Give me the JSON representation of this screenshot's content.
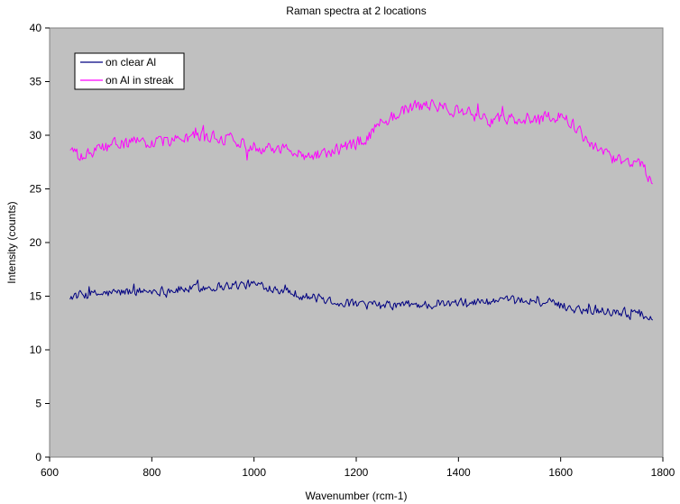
{
  "chart_data": {
    "type": "line",
    "title": "Raman spectra at 2 locations",
    "xlabel": "Wavenumber (rcm-1)",
    "ylabel": "Intensity (counts)",
    "xlim": [
      600,
      1800
    ],
    "ylim": [
      0,
      40
    ],
    "x_ticks": [
      600,
      800,
      1000,
      1200,
      1400,
      1600,
      1800
    ],
    "y_ticks": [
      0,
      5,
      10,
      15,
      20,
      25,
      30,
      35,
      40
    ],
    "grid": false,
    "plot_background": "#C0C0C0",
    "legend_position": "top-left",
    "series": [
      {
        "name": "on clear Al",
        "color": "#000080",
        "x_range": [
          640,
          1780
        ],
        "points": [
          [
            640,
            15.0
          ],
          [
            700,
            15.2
          ],
          [
            750,
            15.4
          ],
          [
            800,
            15.5
          ],
          [
            850,
            15.6
          ],
          [
            900,
            15.8
          ],
          [
            950,
            16.0
          ],
          [
            1000,
            16.1
          ],
          [
            1050,
            15.7
          ],
          [
            1100,
            15.0
          ],
          [
            1150,
            14.6
          ],
          [
            1200,
            14.2
          ],
          [
            1250,
            14.1
          ],
          [
            1300,
            14.2
          ],
          [
            1350,
            14.2
          ],
          [
            1400,
            14.3
          ],
          [
            1450,
            14.5
          ],
          [
            1500,
            14.5
          ],
          [
            1550,
            14.6
          ],
          [
            1600,
            14.1
          ],
          [
            1650,
            13.7
          ],
          [
            1700,
            13.6
          ],
          [
            1750,
            13.4
          ],
          [
            1780,
            13.0
          ]
        ],
        "noise_amplitude": 0.6
      },
      {
        "name": "on Al in streak",
        "color": "#FF00FF",
        "x_range": [
          640,
          1780
        ],
        "points": [
          [
            640,
            28.8
          ],
          [
            660,
            27.8
          ],
          [
            700,
            28.8
          ],
          [
            750,
            29.3
          ],
          [
            800,
            29.3
          ],
          [
            850,
            29.6
          ],
          [
            900,
            29.9
          ],
          [
            950,
            29.7
          ],
          [
            1000,
            29.0
          ],
          [
            1050,
            28.8
          ],
          [
            1100,
            28.2
          ],
          [
            1150,
            28.4
          ],
          [
            1200,
            29.2
          ],
          [
            1225,
            30.0
          ],
          [
            1250,
            31.2
          ],
          [
            1300,
            32.5
          ],
          [
            1350,
            32.8
          ],
          [
            1400,
            32.3
          ],
          [
            1450,
            31.5
          ],
          [
            1500,
            31.4
          ],
          [
            1550,
            31.6
          ],
          [
            1600,
            31.8
          ],
          [
            1625,
            31.0
          ],
          [
            1650,
            29.5
          ],
          [
            1700,
            27.7
          ],
          [
            1750,
            27.6
          ],
          [
            1770,
            26.5
          ],
          [
            1780,
            25.3
          ]
        ],
        "noise_amplitude": 0.8
      }
    ]
  }
}
